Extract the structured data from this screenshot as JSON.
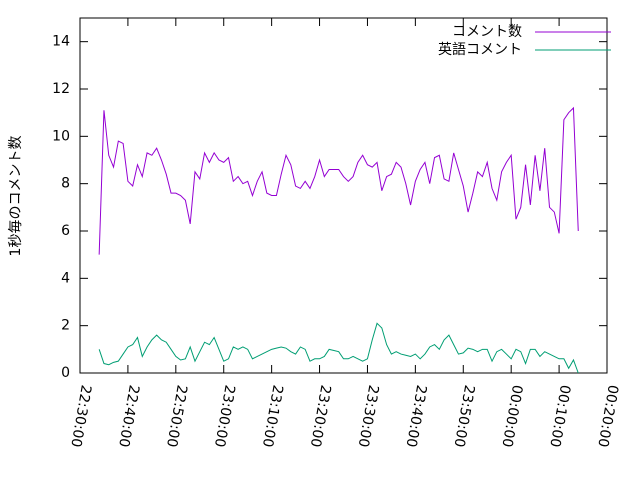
{
  "chart_data": {
    "type": "line",
    "ylabel": "1秒毎のコメント数",
    "x": [
      "22:34:00",
      "22:35:00",
      "22:36:00",
      "22:37:00",
      "22:38:00",
      "22:39:00",
      "22:40:00",
      "22:41:00",
      "22:42:00",
      "22:43:00",
      "22:44:00",
      "22:45:00",
      "22:46:00",
      "22:47:00",
      "22:48:00",
      "22:49:00",
      "22:50:00",
      "22:51:00",
      "22:52:00",
      "22:53:00",
      "22:54:00",
      "22:55:00",
      "22:56:00",
      "22:57:00",
      "22:58:00",
      "22:59:00",
      "23:00:00",
      "23:01:00",
      "23:02:00",
      "23:03:00",
      "23:04:00",
      "23:05:00",
      "23:06:00",
      "23:07:00",
      "23:08:00",
      "23:09:00",
      "23:10:00",
      "23:11:00",
      "23:12:00",
      "23:13:00",
      "23:14:00",
      "23:15:00",
      "23:16:00",
      "23:17:00",
      "23:18:00",
      "23:19:00",
      "23:20:00",
      "23:21:00",
      "23:22:00",
      "23:23:00",
      "23:24:00",
      "23:25:00",
      "23:26:00",
      "23:27:00",
      "23:28:00",
      "23:29:00",
      "23:30:00",
      "23:31:00",
      "23:32:00",
      "23:33:00",
      "23:34:00",
      "23:35:00",
      "23:36:00",
      "23:37:00",
      "23:38:00",
      "23:39:00",
      "23:40:00",
      "23:41:00",
      "23:42:00",
      "23:43:00",
      "23:44:00",
      "23:45:00",
      "23:46:00",
      "23:47:00",
      "23:48:00",
      "23:49:00",
      "23:50:00",
      "23:51:00",
      "23:52:00",
      "23:53:00",
      "23:54:00",
      "23:55:00",
      "23:56:00",
      "23:57:00",
      "23:58:00",
      "23:59:00",
      "00:00:00",
      "00:01:00",
      "00:02:00",
      "00:03:00",
      "00:04:00",
      "00:05:00",
      "00:06:00",
      "00:07:00",
      "00:08:00",
      "00:09:00",
      "00:10:00",
      "00:11:00",
      "00:12:00",
      "00:13:00",
      "00:14:00"
    ],
    "series": [
      {
        "name": "コメント数",
        "color": "#9400d3",
        "values": [
          5.0,
          11.1,
          9.2,
          8.7,
          9.8,
          9.7,
          8.1,
          7.9,
          8.8,
          8.3,
          9.3,
          9.2,
          9.5,
          9.0,
          8.4,
          7.6,
          7.6,
          7.5,
          7.3,
          6.3,
          8.5,
          8.2,
          9.3,
          8.9,
          9.3,
          9.0,
          8.9,
          9.1,
          8.1,
          8.3,
          8.0,
          8.1,
          7.5,
          8.1,
          8.5,
          7.6,
          7.5,
          7.5,
          8.4,
          9.2,
          8.8,
          7.9,
          7.8,
          8.1,
          7.8,
          8.3,
          9.0,
          8.3,
          8.6,
          8.6,
          8.6,
          8.3,
          8.1,
          8.3,
          8.9,
          9.2,
          8.8,
          8.7,
          8.9,
          7.7,
          8.3,
          8.4,
          8.9,
          8.7,
          8.0,
          7.1,
          8.1,
          8.6,
          8.9,
          8.0,
          9.1,
          9.2,
          8.2,
          8.1,
          9.3,
          8.6,
          7.9,
          6.8,
          7.6,
          8.5,
          8.3,
          8.9,
          7.8,
          7.3,
          8.5,
          8.9,
          9.2,
          6.5,
          7.0,
          8.8,
          7.1,
          9.2,
          7.7,
          9.5,
          7.0,
          6.8,
          5.9,
          10.7,
          11.0,
          11.2,
          6.0
        ]
      },
      {
        "name": "英語コメント",
        "color": "#009e73",
        "values": [
          1.0,
          0.4,
          0.35,
          0.45,
          0.5,
          0.8,
          1.1,
          1.2,
          1.5,
          0.7,
          1.1,
          1.4,
          1.6,
          1.4,
          1.3,
          1.0,
          0.7,
          0.55,
          0.6,
          1.1,
          0.5,
          0.9,
          1.3,
          1.2,
          1.5,
          1.0,
          0.5,
          0.6,
          1.1,
          1.0,
          1.1,
          1.0,
          0.6,
          0.7,
          0.8,
          0.9,
          1.0,
          1.05,
          1.1,
          1.05,
          0.9,
          0.8,
          1.1,
          1.0,
          0.5,
          0.6,
          0.6,
          0.7,
          1.0,
          0.95,
          0.9,
          0.6,
          0.6,
          0.7,
          0.6,
          0.5,
          0.6,
          1.4,
          2.1,
          1.9,
          1.2,
          0.8,
          0.9,
          0.8,
          0.75,
          0.7,
          0.8,
          0.6,
          0.8,
          1.1,
          1.2,
          1.0,
          1.4,
          1.6,
          1.2,
          0.8,
          0.85,
          1.05,
          1.0,
          0.9,
          1.0,
          1.0,
          0.5,
          0.9,
          1.0,
          0.8,
          0.6,
          1.0,
          0.9,
          0.4,
          1.0,
          1.0,
          0.7,
          0.9,
          0.8,
          0.7,
          0.6,
          0.6,
          0.2,
          0.55,
          0.0
        ]
      }
    ],
    "xlim": [
      "22:30:00",
      "00:20:00"
    ],
    "xticks": [
      "22:30:00",
      "22:40:00",
      "22:50:00",
      "23:00:00",
      "23:10:00",
      "23:20:00",
      "23:30:00",
      "23:40:00",
      "23:50:00",
      "00:00:00",
      "00:10:00",
      "00:20:00"
    ],
    "ylim": [
      0,
      15
    ],
    "yticks": [
      0,
      2,
      4,
      6,
      8,
      10,
      12,
      14
    ],
    "legend": "top-right"
  }
}
